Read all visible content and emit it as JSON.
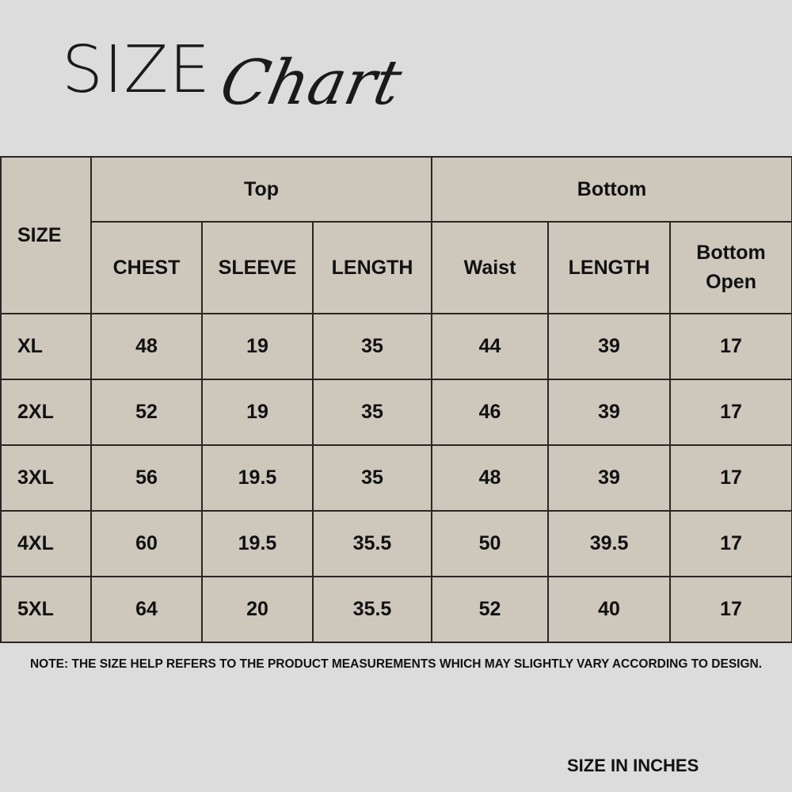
{
  "title": {
    "main": "SIZE",
    "script": "Chart"
  },
  "table": {
    "size_header": "SIZE",
    "groups": [
      "Top",
      "Bottom"
    ],
    "columns": [
      "CHEST",
      "SLEEVE",
      "LENGTH",
      "Waist",
      "LENGTH",
      "Bottom Open"
    ],
    "rows": [
      {
        "size": "XL",
        "values": [
          "48",
          "19",
          "35",
          "44",
          "39",
          "17"
        ]
      },
      {
        "size": "2XL",
        "values": [
          "52",
          "19",
          "35",
          "46",
          "39",
          "17"
        ]
      },
      {
        "size": "3XL",
        "values": [
          "56",
          "19.5",
          "35",
          "48",
          "39",
          "17"
        ]
      },
      {
        "size": "4XL",
        "values": [
          "60",
          "19.5",
          "35.5",
          "50",
          "39.5",
          "17"
        ]
      },
      {
        "size": "5XL",
        "values": [
          "64",
          "20",
          "35.5",
          "52",
          "40",
          "17"
        ]
      }
    ]
  },
  "note": "NOTE: THE SIZE HELP REFERS TO THE PRODUCT MEASUREMENTS WHICH MAY SLIGHTLY VARY ACCORDING TO DESIGN.",
  "unit_label": "SIZE IN INCHES",
  "colors": {
    "background": "#dcdcdc",
    "cell": "#cdc7bc",
    "border": "#2a2622"
  }
}
